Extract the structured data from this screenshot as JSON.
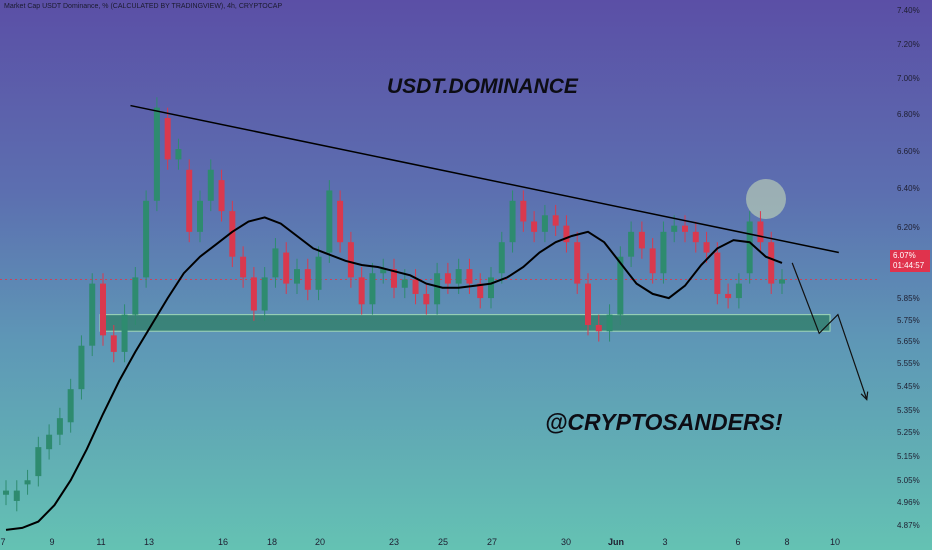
{
  "header": {
    "symbol_line": "Market Cap USDT Dominance, % (CALCULATED BY TRADINGVIEW), 4h, CRYPTOCAP"
  },
  "annotations": {
    "title": "USDT.DOMINANCE",
    "handle": "@CRYPTOSANDERS!"
  },
  "price_badge": {
    "price": "6.07%",
    "countdown": "01:44:57"
  },
  "colors": {
    "bullish": "#2e8b6f",
    "bearish": "#d9394e",
    "ma_line": "#000000",
    "trendline": "#000000",
    "support_zone": "#2f7d66",
    "highlight_circle": "#cfe3b8",
    "price_line": "#d9394e"
  },
  "chart_data": {
    "type": "candlestick",
    "title": "",
    "xlabel": "",
    "ylabel": "",
    "ylim": [
      4.85,
      7.42
    ],
    "x_ticks": [
      "7",
      "9",
      "11",
      "13",
      "16",
      "18",
      "20",
      "23",
      "25",
      "27",
      "30",
      "Jun",
      "3",
      "6",
      "8",
      "10"
    ],
    "y_ticks": [
      "7.40%",
      "7.20%",
      "7.00%",
      "6.80%",
      "6.60%",
      "6.40%",
      "6.20%",
      "5.85%",
      "5.75%",
      "5.65%",
      "5.55%",
      "5.45%",
      "5.35%",
      "5.25%",
      "5.15%",
      "5.05%",
      "4.96%",
      "4.87%"
    ],
    "current_price": 6.07,
    "ma_values": [
      4.86,
      4.87,
      4.9,
      4.98,
      5.1,
      5.25,
      5.42,
      5.58,
      5.72,
      5.85,
      5.98,
      6.1,
      6.18,
      6.24,
      6.3,
      6.35,
      6.37,
      6.34,
      6.28,
      6.22,
      6.19,
      6.16,
      6.14,
      6.13,
      6.11,
      6.09,
      6.05,
      6.03,
      6.03,
      6.04,
      6.05,
      6.08,
      6.13,
      6.2,
      6.25,
      6.28,
      6.3,
      6.25,
      6.15,
      6.05,
      6.0,
      5.98,
      6.04,
      6.14,
      6.22,
      6.26,
      6.25,
      6.18,
      6.15
    ],
    "support_zone": [
      5.82,
      5.9
    ],
    "trendline": [
      {
        "t": 0.14,
        "v": 6.91
      },
      {
        "t": 0.9,
        "v": 6.2
      }
    ],
    "projection": [
      {
        "t": 0.85,
        "v": 6.15
      },
      {
        "t": 0.879,
        "v": 5.81
      },
      {
        "t": 0.899,
        "v": 5.9
      },
      {
        "t": 0.93,
        "v": 5.49
      }
    ],
    "candles": [
      {
        "o": 5.03,
        "c": 5.05
      },
      {
        "o": 5.0,
        "c": 5.05
      },
      {
        "o": 5.08,
        "c": 5.1
      },
      {
        "o": 5.12,
        "c": 5.26
      },
      {
        "o": 5.25,
        "c": 5.32
      },
      {
        "o": 5.32,
        "c": 5.4
      },
      {
        "o": 5.38,
        "c": 5.54
      },
      {
        "o": 5.54,
        "c": 5.75
      },
      {
        "o": 5.75,
        "c": 6.05
      },
      {
        "o": 6.05,
        "c": 5.8
      },
      {
        "o": 5.8,
        "c": 5.72
      },
      {
        "o": 5.72,
        "c": 5.9
      },
      {
        "o": 5.9,
        "c": 6.08
      },
      {
        "o": 6.08,
        "c": 6.45
      },
      {
        "o": 6.45,
        "c": 6.9
      },
      {
        "o": 6.85,
        "c": 6.65
      },
      {
        "o": 6.65,
        "c": 6.7
      },
      {
        "o": 6.6,
        "c": 6.3
      },
      {
        "o": 6.3,
        "c": 6.45
      },
      {
        "o": 6.45,
        "c": 6.6
      },
      {
        "o": 6.55,
        "c": 6.4
      },
      {
        "o": 6.4,
        "c": 6.18
      },
      {
        "o": 6.18,
        "c": 6.08
      },
      {
        "o": 6.08,
        "c": 5.92
      },
      {
        "o": 5.92,
        "c": 6.08
      },
      {
        "o": 6.08,
        "c": 6.22
      },
      {
        "o": 6.2,
        "c": 6.05
      },
      {
        "o": 6.05,
        "c": 6.12
      },
      {
        "o": 6.12,
        "c": 6.02
      },
      {
        "o": 6.02,
        "c": 6.18
      },
      {
        "o": 6.2,
        "c": 6.5
      },
      {
        "o": 6.45,
        "c": 6.25
      },
      {
        "o": 6.25,
        "c": 6.08
      },
      {
        "o": 6.08,
        "c": 5.95
      },
      {
        "o": 5.95,
        "c": 6.1
      },
      {
        "o": 6.1,
        "c": 6.12
      },
      {
        "o": 6.12,
        "c": 6.03
      },
      {
        "o": 6.03,
        "c": 6.07
      },
      {
        "o": 6.07,
        "c": 6.0
      },
      {
        "o": 6.0,
        "c": 5.95
      },
      {
        "o": 5.95,
        "c": 6.1
      },
      {
        "o": 6.1,
        "c": 6.05
      },
      {
        "o": 6.05,
        "c": 6.12
      },
      {
        "o": 6.12,
        "c": 6.05
      },
      {
        "o": 6.05,
        "c": 5.98
      },
      {
        "o": 5.98,
        "c": 6.08
      },
      {
        "o": 6.1,
        "c": 6.25
      },
      {
        "o": 6.25,
        "c": 6.45
      },
      {
        "o": 6.45,
        "c": 6.35
      },
      {
        "o": 6.35,
        "c": 6.3
      },
      {
        "o": 6.3,
        "c": 6.38
      },
      {
        "o": 6.38,
        "c": 6.33
      },
      {
        "o": 6.33,
        "c": 6.25
      },
      {
        "o": 6.25,
        "c": 6.05
      },
      {
        "o": 6.05,
        "c": 5.85
      },
      {
        "o": 5.85,
        "c": 5.82
      },
      {
        "o": 5.82,
        "c": 5.9
      },
      {
        "o": 5.9,
        "c": 6.18
      },
      {
        "o": 6.18,
        "c": 6.3
      },
      {
        "o": 6.3,
        "c": 6.22
      },
      {
        "o": 6.22,
        "c": 6.1
      },
      {
        "o": 6.1,
        "c": 6.3
      },
      {
        "o": 6.3,
        "c": 6.33
      },
      {
        "o": 6.33,
        "c": 6.3
      },
      {
        "o": 6.3,
        "c": 6.25
      },
      {
        "o": 6.25,
        "c": 6.2
      },
      {
        "o": 6.2,
        "c": 6.0
      },
      {
        "o": 6.0,
        "c": 5.98
      },
      {
        "o": 5.98,
        "c": 6.05
      },
      {
        "o": 6.1,
        "c": 6.35
      },
      {
        "o": 6.35,
        "c": 6.25
      },
      {
        "o": 6.25,
        "c": 6.05
      },
      {
        "o": 6.05,
        "c": 6.07
      }
    ]
  }
}
